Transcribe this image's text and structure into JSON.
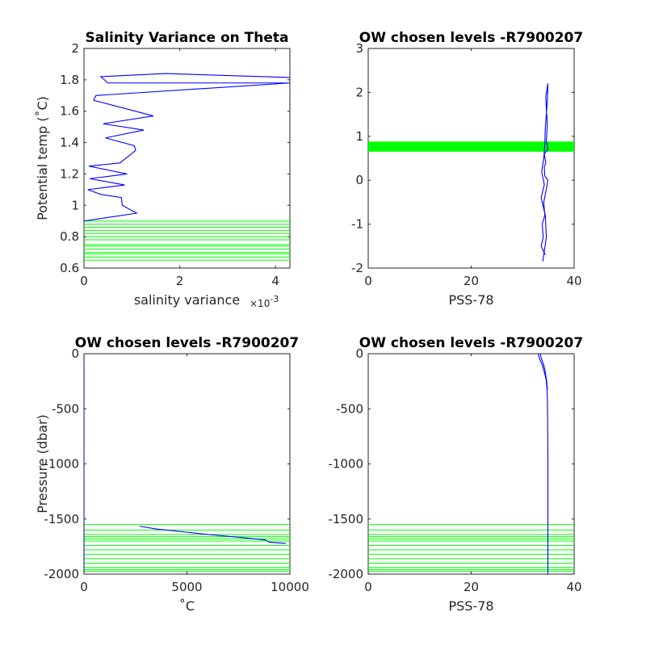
{
  "colors": {
    "profile": "#0000ff",
    "levels": "#00ff00",
    "axis": "#262626"
  },
  "chart_data": [
    {
      "id": "p1",
      "type": "line",
      "title": "Salinity Variance on Theta",
      "xlabel": "salinity variance",
      "xexp": "×10",
      "xexp_power": "-3",
      "ylabel": "Potential temp (˚C)",
      "xlim": [
        0,
        4.3
      ],
      "ylim": [
        0.6,
        2.0
      ],
      "xticks": [
        0,
        2,
        4
      ],
      "xtick_labels": [
        "0",
        "2",
        "4"
      ],
      "yticks": [
        0.6,
        0.8,
        1.0,
        1.2,
        1.4,
        1.6,
        1.8,
        2.0
      ],
      "ytick_labels": [
        "0.6",
        "0.8",
        "1",
        "1.2",
        "1.4",
        "1.6",
        "1.8",
        "2"
      ],
      "hlines": [
        0.65,
        0.67,
        0.69,
        0.7,
        0.72,
        0.74,
        0.75,
        0.78,
        0.8,
        0.82,
        0.84,
        0.86,
        0.88,
        0.9
      ],
      "series": [
        {
          "x": [
            0,
            1.1,
            0.8,
            0.78,
            0.35,
            0.08,
            0.85,
            0.12,
            0.9,
            0.1,
            0.75,
            1.08,
            1.05,
            0.45,
            1.25,
            0.4,
            1.45,
            0.2,
            0.25,
            4.3,
            0.5,
            0.35,
            1.7,
            4.3
          ],
          "y": [
            0.9,
            0.95,
            1.0,
            1.05,
            1.07,
            1.1,
            1.13,
            1.17,
            1.2,
            1.25,
            1.27,
            1.35,
            1.38,
            1.43,
            1.48,
            1.52,
            1.57,
            1.67,
            1.7,
            1.78,
            1.78,
            1.82,
            1.84,
            1.815
          ]
        }
      ]
    },
    {
      "id": "p2",
      "type": "line",
      "title": "OW chosen levels -R7900207",
      "xlabel": "PSS-78",
      "ylabel": "",
      "xlim": [
        0,
        40
      ],
      "ylim": [
        -2,
        3
      ],
      "xticks": [
        0,
        20,
        40
      ],
      "xtick_labels": [
        "0",
        "20",
        "40"
      ],
      "yticks": [
        -2,
        -1,
        0,
        1,
        2,
        3
      ],
      "ytick_labels": [
        "-2",
        "-1",
        "0",
        "1",
        "2",
        "3"
      ],
      "hband": [
        0.65,
        0.88
      ],
      "series": [
        {
          "x": [
            34.4,
            33.6,
            34.0,
            33.8,
            34.3,
            34.1,
            34.6,
            34.9,
            34.3,
            34.2,
            34.5,
            34.2,
            34.9,
            34.6,
            34.7,
            34.8,
            34.6,
            34.5,
            34.9,
            34.8,
            34.4,
            34.3,
            34.1,
            33.7,
            34.2,
            33.6,
            34.4,
            34.6,
            33.9
          ],
          "y": [
            -1.7,
            -1.5,
            -1.3,
            -1.0,
            -0.8,
            -0.5,
            -0.2,
            0.0,
            0.1,
            0.3,
            0.4,
            0.6,
            0.7,
            0.9,
            1.1,
            1.3,
            1.6,
            1.9,
            2.2,
            1.8,
            1.2,
            0.8,
            0.5,
            0.2,
            -0.1,
            -0.4,
            -0.8,
            -1.3,
            -1.85
          ]
        }
      ]
    },
    {
      "id": "p3",
      "type": "line",
      "title": "OW chosen levels -R7900207",
      "xlabel": "˚C",
      "ylabel": "Pressure (dbar)",
      "xlim": [
        0,
        10000
      ],
      "ylim": [
        -2000,
        0
      ],
      "xticks": [
        0,
        5000,
        10000
      ],
      "xtick_labels": [
        "0",
        "5000",
        "10000"
      ],
      "yticks": [
        -2000,
        -1500,
        -1000,
        -500,
        0
      ],
      "ytick_labels": [
        "-2000",
        "-1500",
        "-1000",
        "-500",
        "0"
      ],
      "hlines": [
        -1550,
        -1600,
        -1640,
        -1660,
        -1680,
        -1700,
        -1740,
        -1780,
        -1820,
        -1860,
        -1900,
        -1940,
        -1960,
        -1975
      ],
      "series": [
        {
          "x": [
            0,
            0,
            0
          ],
          "y": [
            0,
            -1000,
            -2000
          ]
        },
        {
          "x": [
            2700,
            3500,
            5000,
            6000,
            7500,
            8800,
            9000,
            9800
          ],
          "y": [
            -1565,
            -1590,
            -1620,
            -1640,
            -1665,
            -1690,
            -1710,
            -1720
          ]
        }
      ]
    },
    {
      "id": "p4",
      "type": "line",
      "title": "OW chosen levels -R7900207",
      "xlabel": "PSS-78",
      "ylabel": "",
      "xlim": [
        0,
        40
      ],
      "ylim": [
        -2000,
        0
      ],
      "xticks": [
        0,
        20,
        40
      ],
      "xtick_labels": [
        "0",
        "20",
        "40"
      ],
      "yticks": [
        -2000,
        -1500,
        -1000,
        -500,
        0
      ],
      "ytick_labels": [
        "-2000",
        "-1500",
        "-1000",
        "-500",
        "0"
      ],
      "hlines": [
        -1550,
        -1600,
        -1640,
        -1660,
        -1680,
        -1700,
        -1740,
        -1780,
        -1820,
        -1860,
        -1900,
        -1940,
        -1960,
        -1975
      ],
      "series": [
        {
          "x": [
            33.0,
            33.3,
            33.8,
            34.1,
            34.4,
            34.6,
            34.7,
            34.8,
            34.85,
            34.9,
            34.9,
            34.9
          ],
          "y": [
            0,
            -50,
            -100,
            -150,
            -200,
            -250,
            -300,
            -400,
            -600,
            -900,
            -1500,
            -2000
          ]
        },
        {
          "x": [
            33.4,
            33.6,
            34.0,
            34.3,
            34.5,
            34.7,
            34.8
          ],
          "y": [
            0,
            -40,
            -90,
            -140,
            -200,
            -260,
            -330
          ]
        }
      ]
    }
  ]
}
